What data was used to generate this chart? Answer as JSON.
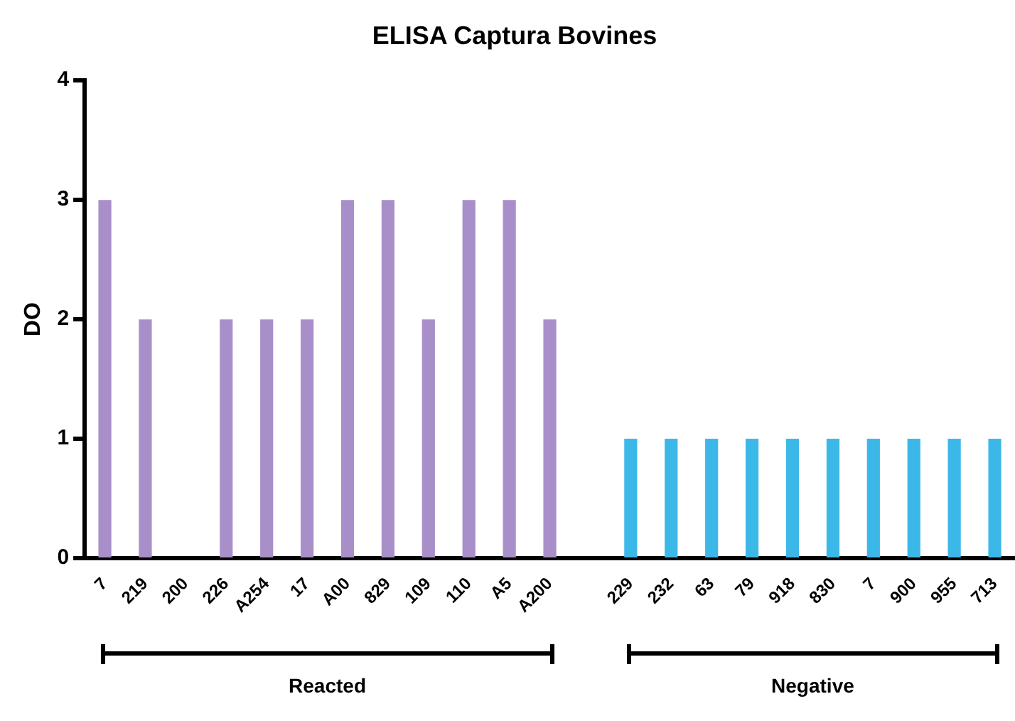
{
  "chart_data": {
    "type": "bar",
    "title": "ELISA Captura Bovines",
    "ylabel": "DO",
    "categories": [
      "7",
      "219",
      "200",
      "226",
      "A254",
      "17",
      "A00",
      "829",
      "109",
      "110",
      "A5",
      "A200",
      null,
      "229",
      "232",
      "63",
      "79",
      "918",
      "830",
      "7",
      "900",
      "955",
      "713"
    ],
    "series": [
      {
        "color": "#a98fc9",
        "values": [
          3,
          2,
          0,
          2,
          2,
          2,
          3,
          3,
          2,
          3,
          3,
          2,
          null,
          null,
          null,
          null,
          null,
          null,
          null,
          null,
          null,
          null,
          null
        ]
      },
      {
        "color": "#3cb8e8",
        "values": [
          null,
          null,
          null,
          null,
          null,
          null,
          null,
          null,
          null,
          null,
          null,
          null,
          null,
          1,
          1,
          1,
          1,
          1,
          1,
          1,
          1,
          1,
          1
        ]
      }
    ],
    "ylim": [
      0,
      4
    ],
    "yticks": [
      0,
      1,
      2,
      3,
      4
    ],
    "grid": false,
    "legend": false,
    "annotations": [
      "Reacted",
      "Negative"
    ]
  }
}
